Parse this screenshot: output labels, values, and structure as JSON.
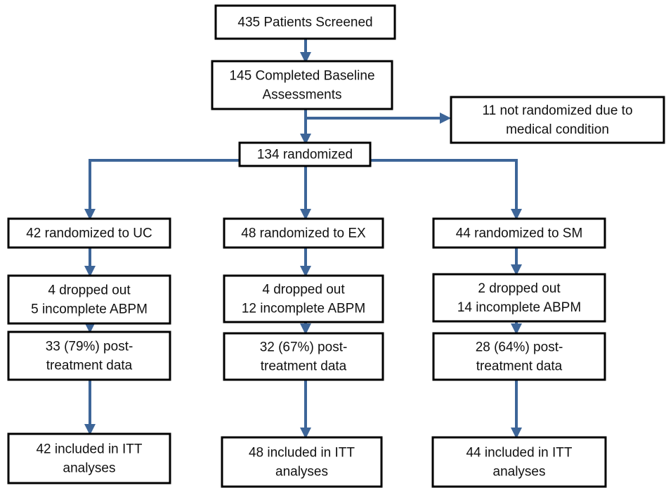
{
  "nodes": [
    {
      "lines": [
        "435 Patients Screened"
      ]
    },
    {
      "lines": [
        "145 Completed Baseline",
        "Assessments"
      ]
    },
    {
      "lines": [
        "11 not randomized due to",
        "medical condition"
      ]
    },
    {
      "lines": [
        "134 randomized"
      ]
    },
    {
      "lines": [
        "42 randomized to UC"
      ]
    },
    {
      "lines": [
        "48 randomized to EX"
      ]
    },
    {
      "lines": [
        "44 randomized to SM"
      ]
    },
    {
      "lines": [
        "4 dropped out",
        "5 incomplete ABPM"
      ]
    },
    {
      "lines": [
        "4 dropped out",
        "12 incomplete ABPM"
      ]
    },
    {
      "lines": [
        "2 dropped out",
        "14 incomplete ABPM"
      ]
    },
    {
      "lines": [
        "33 (79%) post-",
        "treatment data"
      ]
    },
    {
      "lines": [
        "32 (67%) post-",
        "treatment data"
      ]
    },
    {
      "lines": [
        "28 (64%) post-",
        "treatment data"
      ]
    },
    {
      "lines": [
        "42 included in ITT",
        "analyses"
      ]
    },
    {
      "lines": [
        "48 included in ITT",
        "analyses"
      ]
    },
    {
      "lines": [
        "44 included in ITT",
        "analyses"
      ]
    }
  ]
}
